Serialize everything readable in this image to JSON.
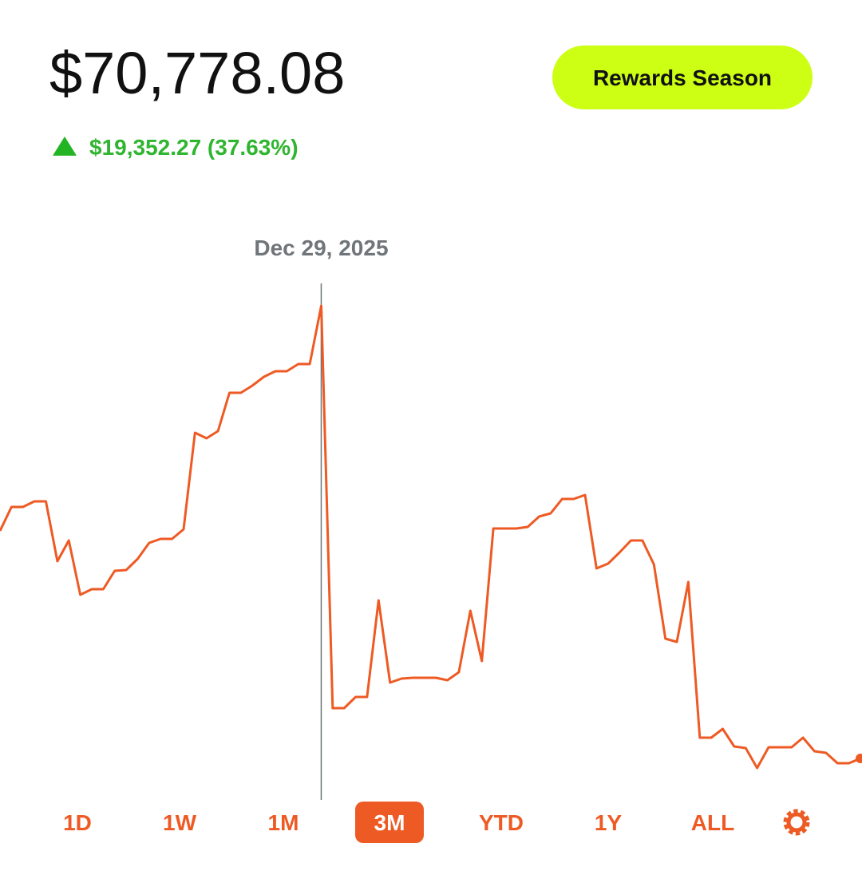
{
  "header": {
    "balance": "$70,778.08",
    "change": "$19,352.27 (37.63%)",
    "button": "Rewards Season"
  },
  "chart_data": {
    "type": "line",
    "color": "#ee5a24",
    "tooltip_date": "Dec 29, 2025",
    "values": [
      51038,
      53138,
      53138,
      53628,
      53628,
      48378,
      50198,
      45438,
      45928,
      45928,
      47538,
      47608,
      48588,
      49988,
      50338,
      50338,
      51178,
      59648,
      59158,
      59788,
      63148,
      63148,
      63778,
      64548,
      65038,
      65038,
      65668,
      65668,
      70778,
      35498,
      35498,
      36478,
      36478,
      44948,
      37738,
      38088,
      38158,
      38158,
      38158,
      37948,
      38648,
      44038,
      39628,
      51248,
      51248,
      51248,
      51388,
      52298,
      52578,
      53838,
      53838,
      54188,
      47748,
      48168,
      49148,
      50198,
      50198,
      48098,
      41588,
      41308,
      46558,
      32908,
      32908,
      33678,
      32138,
      31998,
      30248,
      32068,
      32068,
      32068,
      32908,
      31718,
      31578,
      30668,
      30668,
      31088
    ]
  },
  "ranges": [
    "1D",
    "1W",
    "1M",
    "3M",
    "YTD",
    "1Y",
    "ALL"
  ],
  "selected_range": "3M"
}
